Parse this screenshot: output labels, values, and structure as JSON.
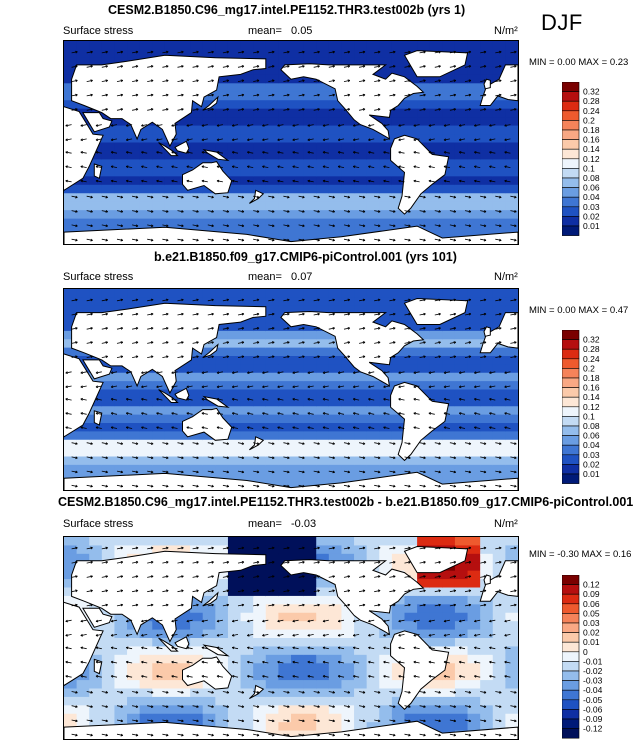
{
  "season": "DJF",
  "panels": [
    {
      "title": "CESM2.B1850.C96_mg17.intel.PE1152.THR3.test002b (yrs 1)",
      "field_label": "Surface stress",
      "mean_label": "mean=",
      "mean_value": "0.05",
      "units": "N/m²",
      "min_label": "MIN =",
      "min_value": "0.00",
      "max_label": "MAX =",
      "max_value": "0.23",
      "colorbar_labels": [
        "0.32",
        "0.28",
        "0.24",
        "0.2",
        "0.18",
        "0.16",
        "0.14",
        "0.12",
        "0.1",
        "0.08",
        "0.06",
        "0.04",
        "0.03",
        "0.02",
        "0.01"
      ],
      "colors": [
        "#7a0000",
        "#b50f0f",
        "#dc2b12",
        "#ee5a2e",
        "#f5835a",
        "#f9a884",
        "#fbcaaa",
        "#fde7d6",
        "#eef5fc",
        "#c3dbf4",
        "#94bdec",
        "#6a9de2",
        "#3f76d3",
        "#1f52c2",
        "#0f2fa3",
        "#001a78"
      ]
    },
    {
      "title": "b.e21.B1850.f09_g17.CMIP6-piControl.001 (yrs 101)",
      "field_label": "Surface stress",
      "mean_label": "mean=",
      "mean_value": "0.07",
      "units": "N/m²",
      "min_label": "MIN =",
      "min_value": "0.00",
      "max_label": "MAX =",
      "max_value": "0.47",
      "colorbar_labels": [
        "0.32",
        "0.28",
        "0.24",
        "0.2",
        "0.18",
        "0.16",
        "0.14",
        "0.12",
        "0.1",
        "0.08",
        "0.06",
        "0.04",
        "0.03",
        "0.02",
        "0.01"
      ],
      "colors": [
        "#7a0000",
        "#b50f0f",
        "#dc2b12",
        "#ee5a2e",
        "#f5835a",
        "#f9a884",
        "#fbcaaa",
        "#fde7d6",
        "#eef5fc",
        "#c3dbf4",
        "#94bdec",
        "#6a9de2",
        "#3f76d3",
        "#1f52c2",
        "#0f2fa3",
        "#001a78"
      ]
    },
    {
      "title": "CESM2.B1850.C96_mg17.intel.PE1152.THR3.test002b - b.e21.B1850.f09_g17.CMIP6-piControl.001",
      "field_label": "Surface stress",
      "mean_label": "mean=",
      "mean_value": "-0.03",
      "units": "N/m²",
      "min_label": "MIN =",
      "min_value": "-0.30",
      "max_label": "MAX =",
      "max_value": "0.16",
      "colorbar_labels": [
        "0.12",
        "0.09",
        "0.06",
        "0.05",
        "0.03",
        "0.02",
        "0.01",
        "0",
        "-0.01",
        "-0.02",
        "-0.03",
        "-0.04",
        "-0.05",
        "-0.06",
        "-0.09",
        "-0.12"
      ],
      "colors": [
        "#7a0000",
        "#b50f0f",
        "#dc2b12",
        "#ee5a2e",
        "#f5835a",
        "#f9a884",
        "#fbcaaa",
        "#fde7d6",
        "#eef5fc",
        "#c3dbf4",
        "#94bdec",
        "#6a9de2",
        "#3f76d3",
        "#1f52c2",
        "#0f2fa3",
        "#001a78",
        "#00105a"
      ]
    }
  ],
  "chart_data": [
    {
      "type": "heatmap",
      "title": "CESM2.B1850.C96_mg17.intel.PE1152.THR3.test002b (yrs 1)",
      "variable": "Surface stress",
      "units": "N/m²",
      "mean": 0.05,
      "min": 0.0,
      "max": 0.23,
      "colorbar_levels": [
        0.01,
        0.02,
        0.03,
        0.04,
        0.06,
        0.08,
        0.1,
        0.12,
        0.14,
        0.16,
        0.18,
        0.2,
        0.24,
        0.28,
        0.32
      ]
    },
    {
      "type": "heatmap",
      "title": "b.e21.B1850.f09_g17.CMIP6-piControl.001 (yrs 101)",
      "variable": "Surface stress",
      "units": "N/m²",
      "mean": 0.07,
      "min": 0.0,
      "max": 0.47,
      "colorbar_levels": [
        0.01,
        0.02,
        0.03,
        0.04,
        0.06,
        0.08,
        0.1,
        0.12,
        0.14,
        0.16,
        0.18,
        0.2,
        0.24,
        0.28,
        0.32
      ]
    },
    {
      "type": "heatmap",
      "title": "CESM2.B1850.C96_mg17.intel.PE1152.THR3.test002b - b.e21.B1850.f09_g17.CMIP6-piControl.001",
      "variable": "Surface stress",
      "units": "N/m²",
      "mean": -0.03,
      "min": -0.3,
      "max": 0.16,
      "colorbar_levels": [
        -0.12,
        -0.09,
        -0.06,
        -0.05,
        -0.04,
        -0.03,
        -0.02,
        -0.01,
        0,
        0.01,
        0.02,
        0.03,
        0.05,
        0.06,
        0.09,
        0.12
      ]
    }
  ]
}
